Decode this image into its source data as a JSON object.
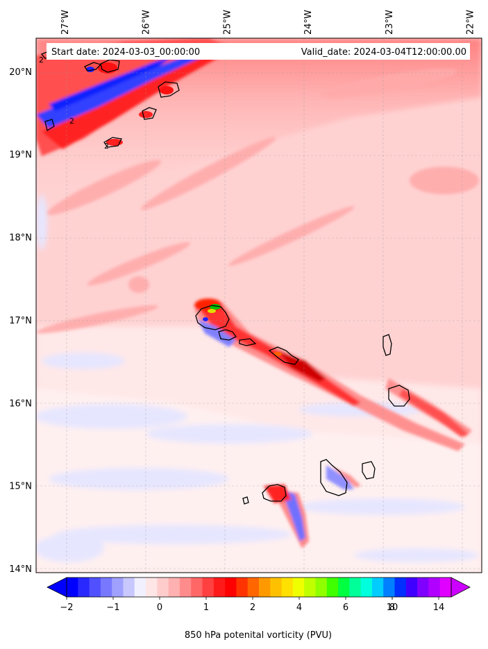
{
  "map": {
    "header": {
      "start_date": "Start date: 2024-03-03_00:00:00",
      "valid_date": "Valid_date: 2024-03-04T12:00:00.00"
    },
    "lon_labels": [
      "27°W",
      "26°W",
      "25°W",
      "24°W",
      "23°W",
      "22°W"
    ],
    "lat_labels": [
      "20°N",
      "19°N",
      "18°N",
      "17°N",
      "16°N",
      "15°N",
      "14°N"
    ],
    "lon_values": [
      -27,
      -26,
      -25,
      -24,
      -23,
      -22
    ],
    "lat_values": [
      20,
      19,
      18,
      17,
      16,
      15,
      14
    ],
    "extent": {
      "lon_min": -27.35,
      "lon_max": -21.85,
      "lat_min": 13.95,
      "lat_max": 20.4
    },
    "contour_labels": [
      "2",
      "2",
      "2"
    ]
  },
  "colorbar": {
    "label": "850 hPa potenital vorticity (PVU)",
    "tick_labels": [
      "−2",
      "−1",
      "0",
      "1",
      "2",
      "4",
      "6",
      "8",
      "10",
      "14"
    ],
    "colors": [
      "#0000ff",
      "#2828ff",
      "#5050ff",
      "#7878ff",
      "#a0a0ff",
      "#c8c8ff",
      "#f0f0ff",
      "#ffe6e6",
      "#ffcccc",
      "#ffb0b0",
      "#ff8c8c",
      "#ff6666",
      "#ff4040",
      "#ff1a1a",
      "#ff0000",
      "#ff3300",
      "#ff6600",
      "#ff9900",
      "#ffc000",
      "#ffe000",
      "#f0ff00",
      "#c0ff00",
      "#90ff00",
      "#40ff00",
      "#00ff40",
      "#00ff99",
      "#00ffdd",
      "#00ccff",
      "#0080ff",
      "#0030ff",
      "#4000ff",
      "#8000ff",
      "#b000ff",
      "#e000ff"
    ],
    "extend_min_color": "#0000ff",
    "extend_max_color": "#cc00ff"
  },
  "colors": {
    "background_pink": "#ffd4d4",
    "light_pink": "#ffe8e8",
    "pale_blue": "#ececff",
    "red": "#ff2020",
    "blue": "#0010ff",
    "coast": "#000000"
  }
}
